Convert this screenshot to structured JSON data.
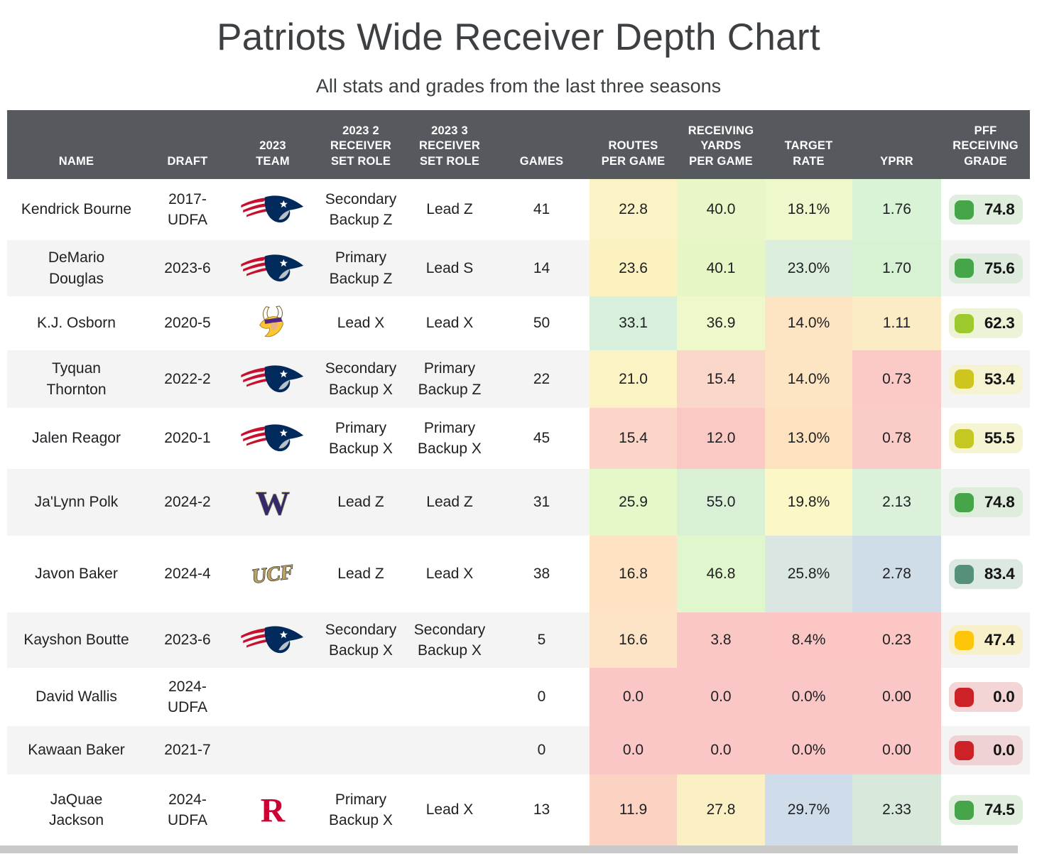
{
  "chart_data": {
    "type": "table",
    "title": "Patriots Wide Receiver Depth Chart",
    "subtitle": "All stats and grades from the last three seasons",
    "columns": [
      "NAME",
      "DRAFT",
      "2023\nTEAM",
      "2023 2\nRECEIVER\nSET ROLE",
      "2023 3\nRECEIVER\nSET ROLE",
      "GAMES",
      "ROUTES\nPER GAME",
      "RECEIVING\nYARDS\nPER GAME",
      "TARGET\nRATE",
      "YPRR",
      "PFF\nRECEIVING\nGRADE"
    ],
    "rows": [
      {
        "name": "Kendrick Bourne",
        "draft": "2017-\nUDFA",
        "team": "patriots",
        "role2": "Secondary\nBackup Z",
        "role3": "Lead Z",
        "games": "41",
        "routes": "22.8",
        "recyards": "40.0",
        "target": "18.1%",
        "yprr": "1.76",
        "heat": {
          "routes": "#fbf3c5",
          "recyards": "#e9f6c8",
          "target": "#eef8cd",
          "yprr": "#d9f3d6"
        },
        "grade": {
          "value": "74.8",
          "color": "#46a449",
          "bg": "#dfeedd"
        }
      },
      {
        "name": "DeMario\nDouglas",
        "draft": "2023-6",
        "team": "patriots",
        "role2": "Primary\nBackup Z",
        "role3": "Lead S",
        "games": "14",
        "routes": "23.6",
        "recyards": "40.1",
        "target": "23.0%",
        "yprr": "1.70",
        "heat": {
          "routes": "#fbf2c0",
          "recyards": "#e7f6c5",
          "target": "#dcefdc",
          "yprr": "#d6f2d3"
        },
        "grade": {
          "value": "75.6",
          "color": "#46a449",
          "bg": "#dcebdb"
        }
      },
      {
        "name": "K.J. Osborn",
        "draft": "2020-5",
        "team": "vikings",
        "role2": "Lead X",
        "role3": "Lead X",
        "games": "50",
        "routes": "33.1",
        "recyards": "36.9",
        "target": "14.0%",
        "yprr": "1.11",
        "heat": {
          "routes": "#d8efdc",
          "recyards": "#eff8cb",
          "target": "#fde5c3",
          "yprr": "#fcecc6"
        },
        "grade": {
          "value": "62.3",
          "color": "#9dc92c",
          "bg": "#ecf3d7"
        }
      },
      {
        "name": "Tyquan\nThornton",
        "draft": "2022-2",
        "team": "patriots",
        "role2": "Secondary\nBackup X",
        "role3": "Primary\nBackup Z",
        "games": "22",
        "routes": "21.0",
        "recyards": "15.4",
        "target": "14.0%",
        "yprr": "0.73",
        "heat": {
          "routes": "#fcf3c4",
          "recyards": "#fbd7ca",
          "target": "#fde5c3",
          "yprr": "#fbcac6"
        },
        "grade": {
          "value": "53.4",
          "color": "#cfc51f",
          "bg": "#f6f3d2"
        }
      },
      {
        "name": "Jalen Reagor",
        "draft": "2020-1",
        "team": "patriots",
        "role2": "Primary\nBackup X",
        "role3": "Primary\nBackup X",
        "games": "45",
        "routes": "15.4",
        "recyards": "12.0",
        "target": "13.0%",
        "yprr": "0.78",
        "heat": {
          "routes": "#fbd5c7",
          "recyards": "#fbc9c4",
          "target": "#fde2c0",
          "yprr": "#fbcbc7"
        },
        "grade": {
          "value": "55.5",
          "color": "#c5c823",
          "bg": "#f5f4d3"
        }
      },
      {
        "name": "Ja'Lynn Polk",
        "draft": "2024-2",
        "team": "washington",
        "role2": "Lead Z",
        "role3": "Lead Z",
        "games": "31",
        "routes": "25.9",
        "recyards": "55.0",
        "target": "19.8%",
        "yprr": "2.13",
        "heat": {
          "routes": "#e4f8c9",
          "recyards": "#d9f0d7",
          "target": "#fbf7c7",
          "yprr": "#dbf1da"
        },
        "grade": {
          "value": "74.8",
          "color": "#46a449",
          "bg": "#ddecdb"
        }
      },
      {
        "name": "Javon Baker",
        "draft": "2024-4",
        "team": "ucf",
        "role2": "Lead Z",
        "role3": "Lead X",
        "games": "38",
        "routes": "16.8",
        "recyards": "46.8",
        "target": "25.8%",
        "yprr": "2.78",
        "heat": {
          "routes": "#fde3c3",
          "recyards": "#e0f6cc",
          "target": "#d9e6e2",
          "yprr": "#cfdde9"
        },
        "grade": {
          "value": "83.4",
          "color": "#55917a",
          "bg": "#dce8e2"
        }
      },
      {
        "name": "Kayshon Boutte",
        "draft": "2023-6",
        "team": "patriots",
        "role2": "Secondary\nBackup X",
        "role3": "Secondary\nBackup X",
        "games": "5",
        "routes": "16.6",
        "recyards": "3.8",
        "target": "8.4%",
        "yprr": "0.23",
        "heat": {
          "routes": "#fde4c6",
          "recyards": "#fbc7c5",
          "target": "#fbc6c4",
          "yprr": "#fbc6c4"
        },
        "grade": {
          "value": "47.4",
          "color": "#fec60a",
          "bg": "#f7f0ca"
        }
      },
      {
        "name": "David Wallis",
        "draft": "2024-\nUDFA",
        "team": null,
        "role2": "",
        "role3": "",
        "games": "0",
        "routes": "0.0",
        "recyards": "0.0",
        "target": "0.0%",
        "yprr": "0.00",
        "heat": {
          "routes": "#fbc7c6",
          "recyards": "#fbc7c6",
          "target": "#fbc7c6",
          "yprr": "#fbc7c6"
        },
        "grade": {
          "value": "0.0",
          "color": "#cc2127",
          "bg": "#f4d5d5"
        }
      },
      {
        "name": "Kawaan Baker",
        "draft": "2021-7",
        "team": null,
        "role2": "",
        "role3": "",
        "games": "0",
        "routes": "0.0",
        "recyards": "0.0",
        "target": "0.0%",
        "yprr": "0.00",
        "heat": {
          "routes": "#fbc7c6",
          "recyards": "#fbc7c6",
          "target": "#fbc7c6",
          "yprr": "#fbc7c6"
        },
        "grade": {
          "value": "0.0",
          "color": "#cc2127",
          "bg": "#eed2d4"
        }
      },
      {
        "name": "JaQuae\nJackson",
        "draft": "2024-\nUDFA",
        "team": "rutgers",
        "role2": "Primary\nBackup X",
        "role3": "Lead X",
        "games": "13",
        "routes": "11.9",
        "recyards": "27.8",
        "target": "29.7%",
        "yprr": "2.33",
        "heat": {
          "routes": "#fcd3c3",
          "recyards": "#fbf0c4",
          "target": "#cfdcea",
          "yprr": "#d8e8da"
        },
        "grade": {
          "value": "74.5",
          "color": "#46a449",
          "bg": "#dfeedd"
        }
      }
    ],
    "colors": {
      "header_bg": "#565a5f",
      "alt_row_bg": "#f4f4f4",
      "title_color": "#3c4043"
    },
    "team_logos": {
      "patriots": "New England Patriots",
      "vikings": "Minnesota Vikings",
      "washington": "Washington Huskies",
      "ucf": "UCF Knights",
      "rutgers": "Rutgers Scarlet Knights"
    }
  }
}
